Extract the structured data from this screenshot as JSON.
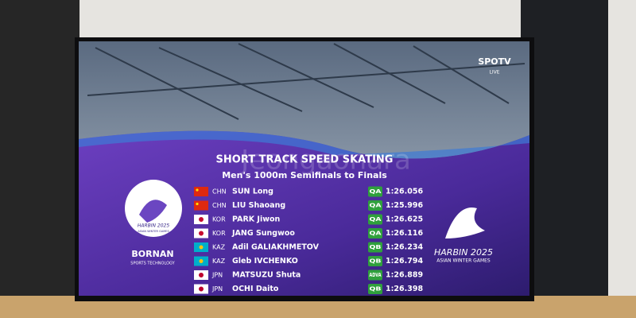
{
  "broadcaster": {
    "name": "SPOTV",
    "status": "LIVE"
  },
  "watermark": "Jeongaonara",
  "header": {
    "title": "SHORT TRACK SPEED SKATING",
    "subtitle": "Men's 1000m Semifinals to Finals"
  },
  "left_logo": {
    "event": "HARBIN 2025",
    "event_sub": "ASIAN WINTER GAMES",
    "sponsor": "BORNAN",
    "sponsor_sub": "SPORTS TECHNOLOGY"
  },
  "right_logo": {
    "event": "HARBIN 2025",
    "event_sub": "ASIAN WINTER GAMES"
  },
  "results": {
    "rows": [
      {
        "country": "CHN",
        "name": "SUN Long",
        "qualification": "QA",
        "time": "1:26.056"
      },
      {
        "country": "CHN",
        "name": "LIU Shaoang",
        "qualification": "QA",
        "time": "1:25.996"
      },
      {
        "country": "KOR",
        "name": "PARK Jiwon",
        "qualification": "QA",
        "time": "1:26.625"
      },
      {
        "country": "KOR",
        "name": "JANG Sungwoo",
        "qualification": "QA",
        "time": "1:26.116"
      },
      {
        "country": "KAZ",
        "name": "Adil GALIAKHMETOV",
        "qualification": "QB",
        "time": "1:26.234"
      },
      {
        "country": "KAZ",
        "name": "Gleb IVCHENKO",
        "qualification": "QB",
        "time": "1:26.794"
      },
      {
        "country": "JPN",
        "name": "MATSUZU Shuta",
        "qualification": "ADVA",
        "time": "1:26.889"
      },
      {
        "country": "JPN",
        "name": "OCHI Daito",
        "qualification": "QB",
        "time": "1:26.398"
      }
    ]
  }
}
